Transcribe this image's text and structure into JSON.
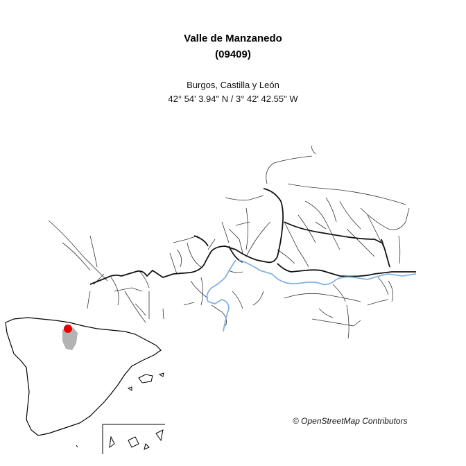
{
  "title": {
    "name": "Valle de Manzanedo",
    "code": "(09409)"
  },
  "subtitle": {
    "region": "Burgos, Castilla y León",
    "coordinates": "42° 54' 3.94\" N / 3° 42' 42.55\" W"
  },
  "attribution": "© OpenStreetMap Contributors",
  "colors": {
    "road": "#1a1a1a",
    "river": "#7fb2e5",
    "locator_province": "#b3b3b3",
    "locator_marker": "#e60000",
    "outline": "#000000"
  }
}
